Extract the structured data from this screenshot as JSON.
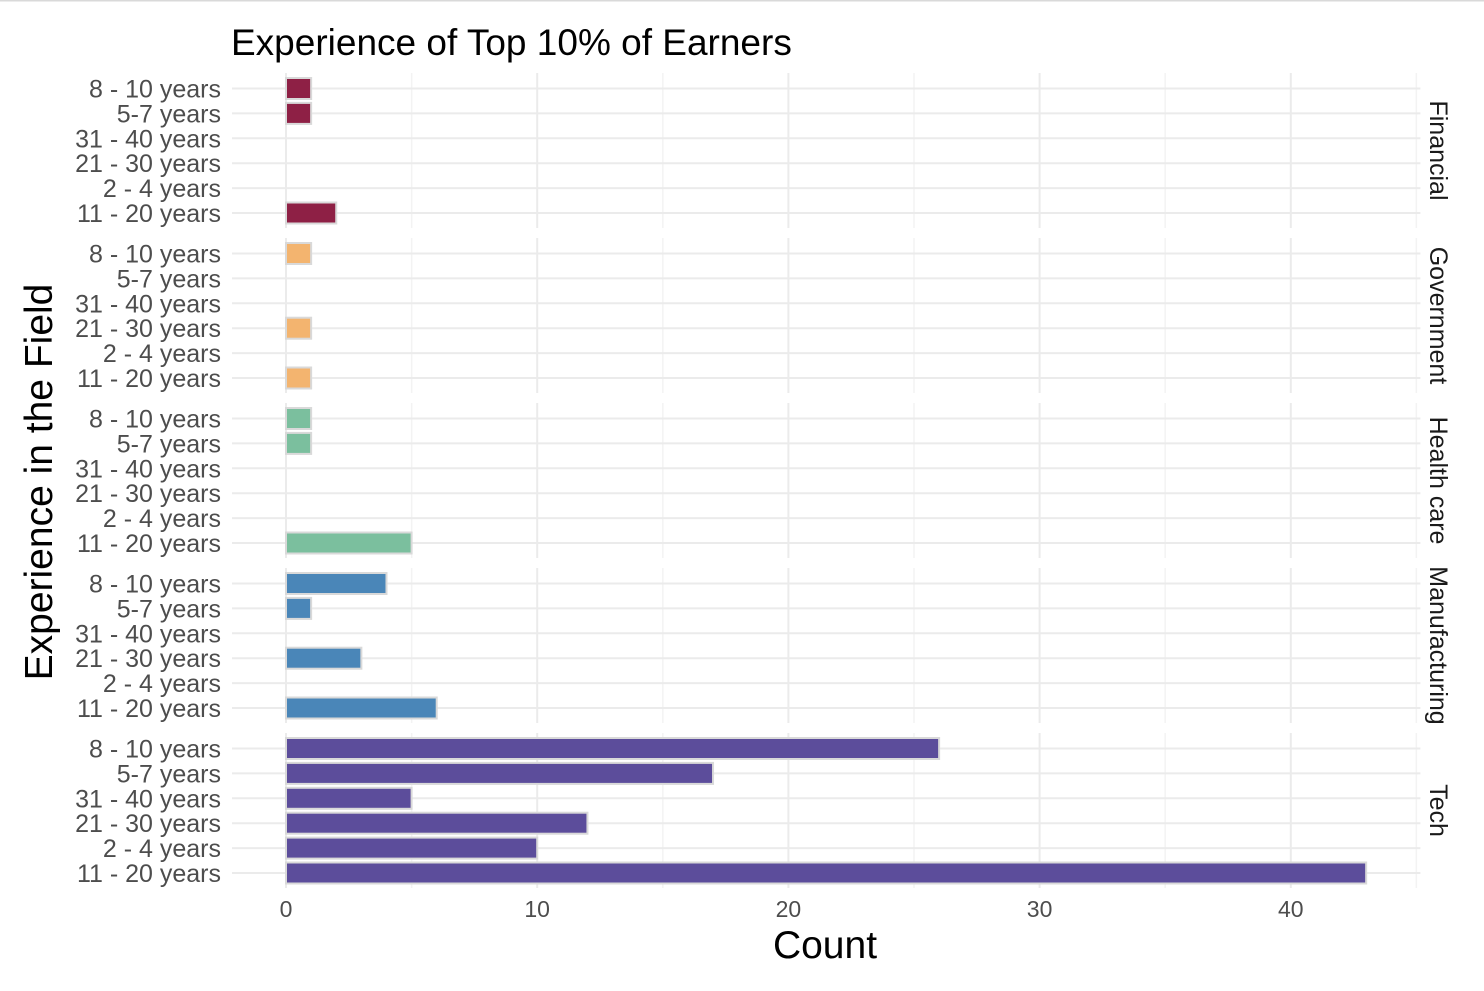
{
  "chart_data": {
    "type": "bar",
    "orientation": "horizontal",
    "title": "Experience of Top 10% of Earners",
    "xlabel": "Count",
    "ylabel": "Experience in the Field",
    "xlim": [
      0,
      45
    ],
    "xticks": [
      0,
      10,
      20,
      30,
      40
    ],
    "grid": true,
    "legend": "none",
    "categories": [
      "8 - 10 years",
      "5-7 years",
      "31 - 40 years",
      "21 - 30 years",
      "2 - 4 years",
      "11 - 20 years"
    ],
    "facets": [
      {
        "name": "Financial",
        "color": "#8e2045",
        "values": [
          1,
          1,
          0,
          0,
          0,
          2
        ]
      },
      {
        "name": "Government",
        "color": "#f3b46f",
        "values": [
          1,
          0,
          0,
          1,
          0,
          1
        ]
      },
      {
        "name": "Health care",
        "color": "#7bbf9e",
        "values": [
          1,
          1,
          0,
          0,
          0,
          5
        ]
      },
      {
        "name": "Manufacturing",
        "color": "#4a86b8",
        "values": [
          4,
          1,
          0,
          3,
          0,
          6
        ]
      },
      {
        "name": "Tech",
        "color": "#5c4d9b",
        "values": [
          26,
          17,
          5,
          12,
          10,
          43
        ]
      }
    ]
  }
}
